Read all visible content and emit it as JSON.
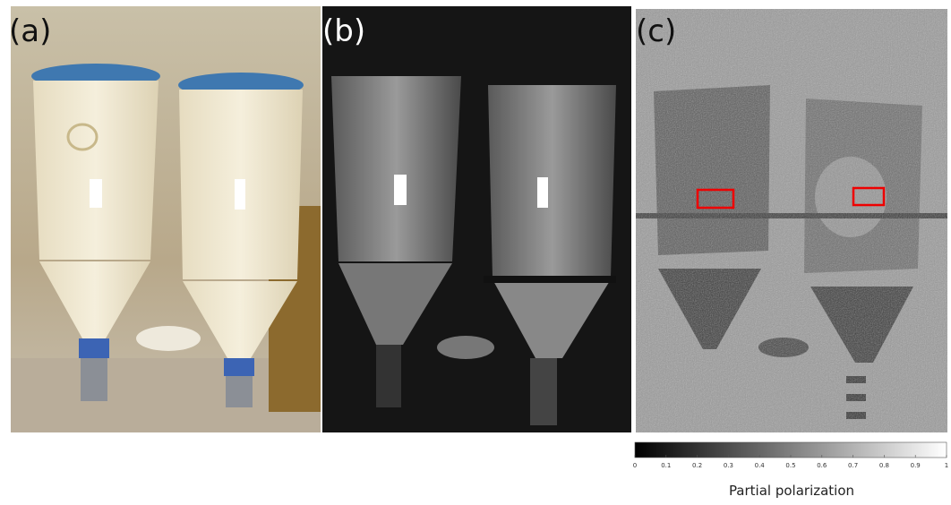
{
  "panels": [
    {
      "label": "(a)"
    },
    {
      "label": "(b)"
    },
    {
      "label": "(c)"
    }
  ],
  "colorbar": {
    "label": "Partial polarization",
    "lim": [
      0,
      1
    ],
    "ticks": [
      0,
      0.1,
      0.2,
      0.3,
      0.4,
      0.5,
      0.6,
      0.7,
      0.8,
      0.9,
      1
    ]
  }
}
